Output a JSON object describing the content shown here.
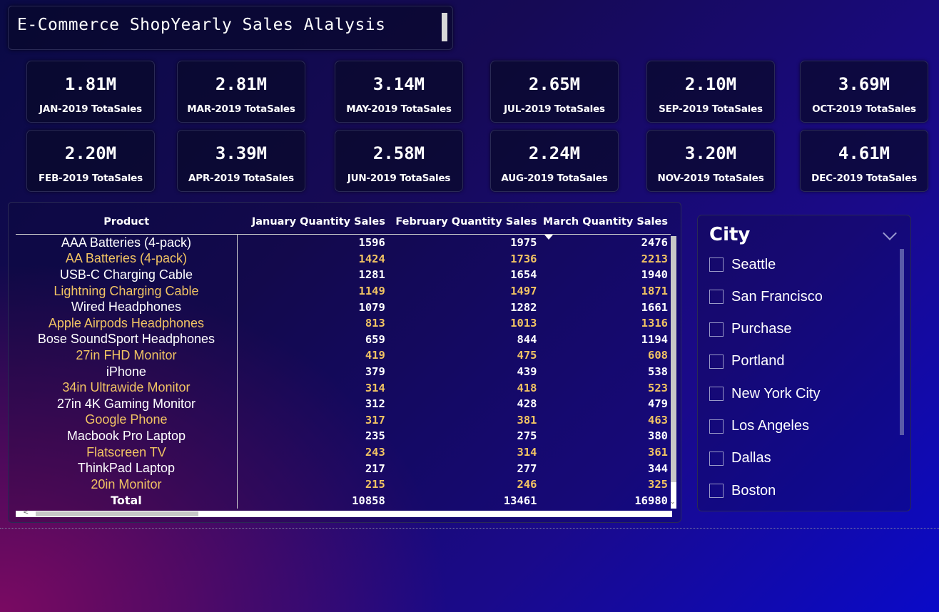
{
  "title": "E-Commerce ShopYearly Sales Alalysis",
  "cards": [
    {
      "value": "1.81M",
      "label": "JAN-2019 TotaSales"
    },
    {
      "value": "2.81M",
      "label": "MAR-2019 TotaSales"
    },
    {
      "value": "3.14M",
      "label": "MAY-2019 TotaSales"
    },
    {
      "value": "2.65M",
      "label": "JUL-2019 TotaSales"
    },
    {
      "value": "2.10M",
      "label": "SEP-2019 TotaSales"
    },
    {
      "value": "3.69M",
      "label": "OCT-2019 TotaSales"
    },
    {
      "value": "2.20M",
      "label": "FEB-2019 TotaSales"
    },
    {
      "value": "3.39M",
      "label": "APR-2019 TotaSales"
    },
    {
      "value": "2.58M",
      "label": "JUN-2019 TotaSales"
    },
    {
      "value": "2.24M",
      "label": "AUG-2019 TotaSales"
    },
    {
      "value": "3.20M",
      "label": "NOV-2019 TotaSales"
    },
    {
      "value": "4.61M",
      "label": "DEC-2019 TotaSales"
    }
  ],
  "table": {
    "headers": [
      "Product",
      "January Quantity Sales",
      "February Quantity Sales",
      "March Quantity Sales"
    ],
    "sorted_column": "March Quantity Sales",
    "rows": [
      {
        "product": "AAA Batteries (4-pack)",
        "jan": "1596",
        "feb": "1975",
        "mar": "2476"
      },
      {
        "product": "AA Batteries (4-pack)",
        "jan": "1424",
        "feb": "1736",
        "mar": "2213"
      },
      {
        "product": "USB-C Charging Cable",
        "jan": "1281",
        "feb": "1654",
        "mar": "1940"
      },
      {
        "product": "Lightning Charging Cable",
        "jan": "1149",
        "feb": "1497",
        "mar": "1871"
      },
      {
        "product": "Wired Headphones",
        "jan": "1079",
        "feb": "1282",
        "mar": "1661"
      },
      {
        "product": "Apple Airpods Headphones",
        "jan": "813",
        "feb": "1013",
        "mar": "1316"
      },
      {
        "product": "Bose SoundSport Headphones",
        "jan": "659",
        "feb": "844",
        "mar": "1194"
      },
      {
        "product": "27in FHD Monitor",
        "jan": "419",
        "feb": "475",
        "mar": "608"
      },
      {
        "product": "iPhone",
        "jan": "379",
        "feb": "439",
        "mar": "538"
      },
      {
        "product": "34in Ultrawide Monitor",
        "jan": "314",
        "feb": "418",
        "mar": "523"
      },
      {
        "product": "27in 4K Gaming Monitor",
        "jan": "312",
        "feb": "428",
        "mar": "479"
      },
      {
        "product": "Google Phone",
        "jan": "317",
        "feb": "381",
        "mar": "463"
      },
      {
        "product": "Macbook Pro Laptop",
        "jan": "235",
        "feb": "275",
        "mar": "380"
      },
      {
        "product": "Flatscreen TV",
        "jan": "243",
        "feb": "314",
        "mar": "361"
      },
      {
        "product": "ThinkPad Laptop",
        "jan": "217",
        "feb": "277",
        "mar": "344"
      },
      {
        "product": "20in Monitor",
        "jan": "215",
        "feb": "246",
        "mar": "325"
      }
    ],
    "total": {
      "product": "Total",
      "jan": "10858",
      "feb": "13461",
      "mar": "16980"
    }
  },
  "slicer": {
    "title": "City",
    "items": [
      "Seattle",
      "San Francisco",
      "Purchase",
      "Portland",
      "New York City",
      "Los Angeles",
      "Dallas",
      "Boston"
    ]
  },
  "colors": {
    "gold_row": "#f2c463",
    "white_row": "#ffffff"
  },
  "icons": {
    "dropdown": "chevron-down-icon",
    "sort": "sort-descending-icon"
  }
}
